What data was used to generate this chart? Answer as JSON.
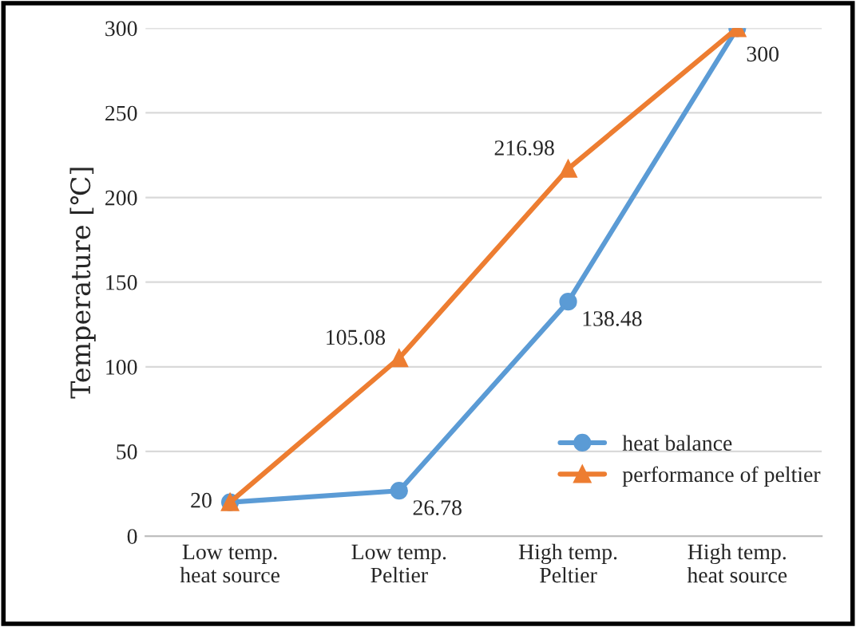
{
  "chart_data": {
    "type": "line",
    "ylabel": "Temperature [℃]",
    "categories": [
      "Low temp.\nheat source",
      "Low temp.\nPeltier",
      "High temp.\nPeltier",
      "High temp.\nheat source"
    ],
    "series": [
      {
        "name": "heat balance",
        "color": "#5b9bd5",
        "marker": "circle",
        "values": [
          20,
          26.78,
          138.48,
          300
        ],
        "value_labels": [
          "20",
          "26.78",
          "138.48",
          "300"
        ]
      },
      {
        "name": "performance of peltier",
        "color": "#ed7d31",
        "marker": "triangle",
        "values": [
          20,
          105.08,
          216.98,
          300
        ],
        "value_labels": [
          null,
          "105.08",
          "216.98",
          null
        ]
      }
    ],
    "ylim": [
      0,
      300
    ],
    "yticks": [
      0,
      50,
      100,
      150,
      200,
      250,
      300
    ],
    "grid": "y",
    "legend": "bottom right"
  }
}
